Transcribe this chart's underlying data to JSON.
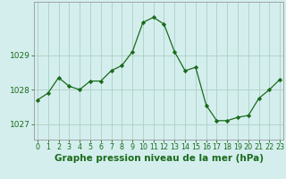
{
  "x": [
    0,
    1,
    2,
    3,
    4,
    5,
    6,
    7,
    8,
    9,
    10,
    11,
    12,
    13,
    14,
    15,
    16,
    17,
    18,
    19,
    20,
    21,
    22,
    23
  ],
  "y": [
    1027.7,
    1027.9,
    1028.35,
    1028.1,
    1028.0,
    1028.25,
    1028.25,
    1028.55,
    1028.7,
    1029.1,
    1029.95,
    1030.1,
    1029.9,
    1029.1,
    1028.55,
    1028.65,
    1027.55,
    1027.1,
    1027.1,
    1027.2,
    1027.25,
    1027.75,
    1028.0,
    1028.3
  ],
  "line_color": "#1a6b1a",
  "marker": "D",
  "marker_size": 2.2,
  "bg_color": "#d4eeee",
  "grid_color": "#b0d4c8",
  "xlabel": "Graphe pression niveau de la mer (hPa)",
  "xlabel_fontsize": 7.5,
  "yticks": [
    1027,
    1028,
    1029
  ],
  "ylim": [
    1026.55,
    1030.55
  ],
  "xlim": [
    -0.3,
    23.3
  ],
  "xticks": [
    0,
    1,
    2,
    3,
    4,
    5,
    6,
    7,
    8,
    9,
    10,
    11,
    12,
    13,
    14,
    15,
    16,
    17,
    18,
    19,
    20,
    21,
    22,
    23
  ],
  "ytick_fontsize": 6.5,
  "xtick_fontsize": 5.8
}
